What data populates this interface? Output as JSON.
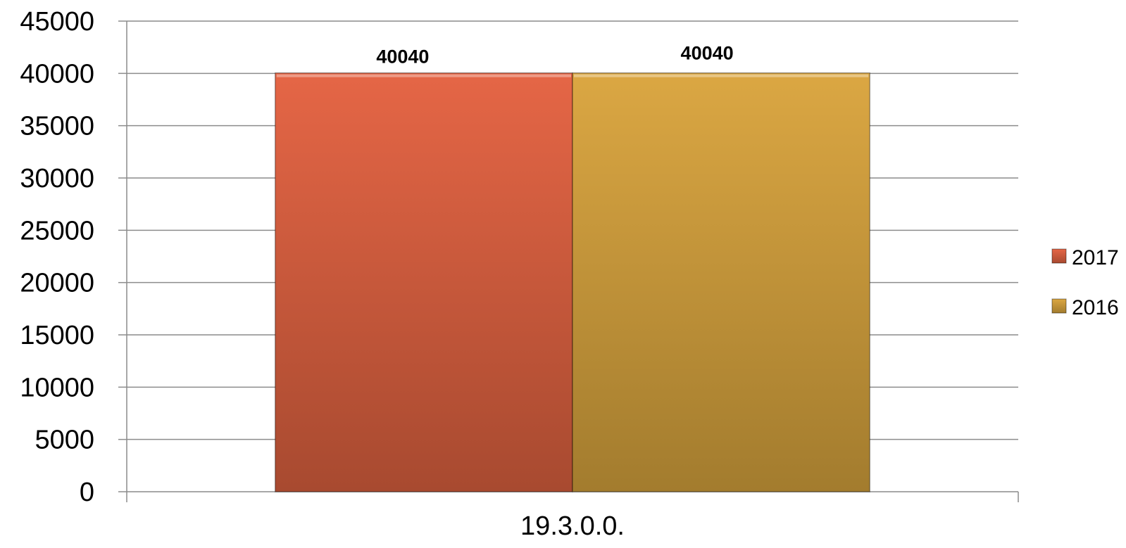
{
  "chart_data": {
    "type": "bar",
    "categories": [
      "19.3.0.0."
    ],
    "series": [
      {
        "name": "2017",
        "values": [
          40040
        ],
        "color": "#d95d3c",
        "data_labels": [
          "40040"
        ]
      },
      {
        "name": "2016",
        "values": [
          40040
        ],
        "color": "#c89636",
        "data_labels": [
          "40040"
        ]
      }
    ],
    "ylim": [
      0,
      45000
    ],
    "yticks": [
      0,
      5000,
      10000,
      15000,
      20000,
      25000,
      30000,
      35000,
      40000,
      45000
    ],
    "grid": true,
    "legend_position": "right"
  }
}
